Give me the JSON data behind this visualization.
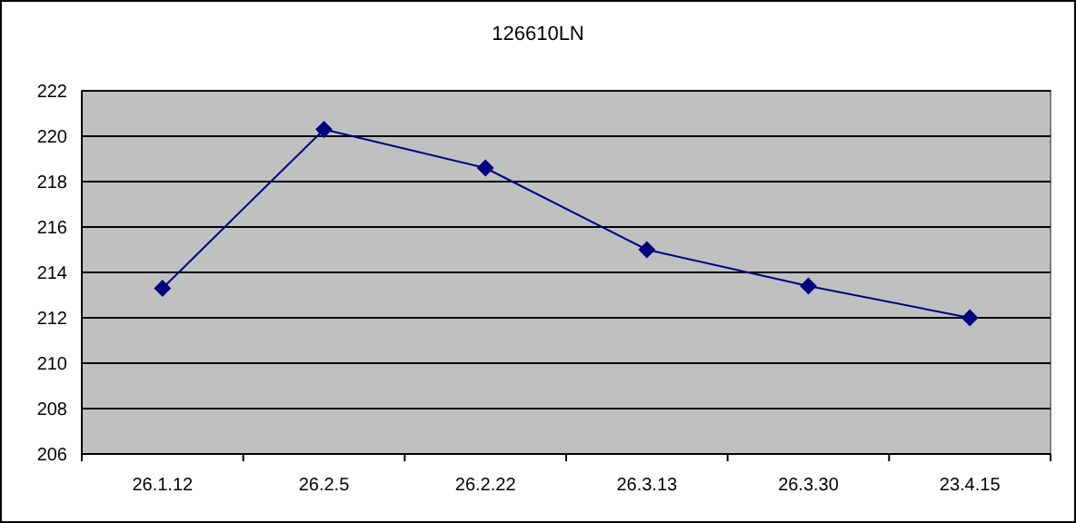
{
  "chart_data": {
    "type": "line",
    "title": "126610LN",
    "categories": [
      "26.1.12",
      "26.2.5",
      "26.2.22",
      "26.3.13",
      "26.3.30",
      "23.4.15"
    ],
    "series": [
      {
        "color": "#000080",
        "values": [
          213.3,
          220.3,
          218.6,
          215.0,
          213.4,
          212.0
        ]
      }
    ],
    "ylim": [
      206,
      222
    ],
    "yticks": [
      206,
      208,
      210,
      212,
      214,
      216,
      218,
      220,
      222
    ],
    "grid": "y",
    "marker": "diamond",
    "line_style": "solid"
  }
}
